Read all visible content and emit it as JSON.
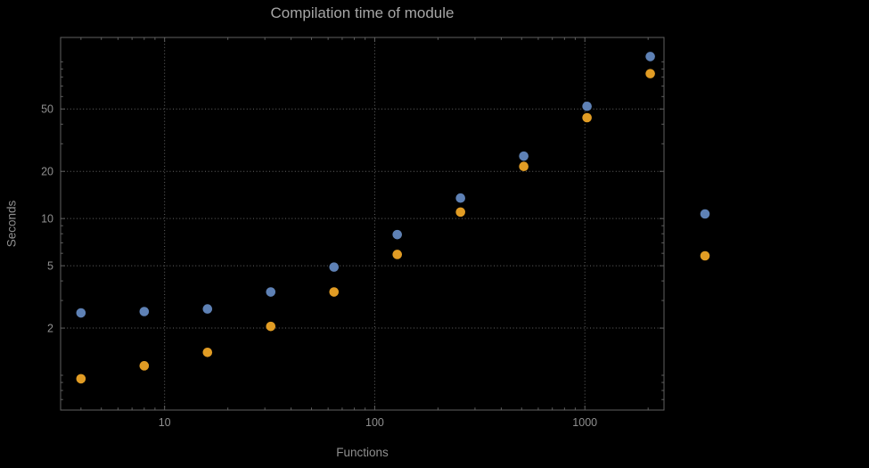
{
  "chart_data": {
    "type": "scatter",
    "title": "Compilation time of module",
    "xlabel": "Functions",
    "ylabel": "Seconds",
    "x_scale": "log",
    "y_scale": "log",
    "x": [
      4,
      8,
      16,
      32,
      64,
      128,
      256,
      512,
      1024,
      2048
    ],
    "series": [
      {
        "name": "blue-series",
        "color": "#5e81b5",
        "values": [
          2.5,
          2.55,
          2.65,
          3.4,
          4.9,
          7.9,
          13.5,
          25,
          52,
          108
        ]
      },
      {
        "name": "orange-series",
        "color": "#e19c24",
        "values": [
          0.95,
          1.15,
          1.4,
          2.05,
          3.4,
          5.9,
          11,
          21.5,
          44,
          84
        ]
      }
    ],
    "x_ticks": [
      10,
      100,
      1000
    ],
    "y_ticks": [
      2,
      5,
      10,
      20,
      50
    ],
    "xlim": [
      3.2,
      2380
    ],
    "ylim": [
      0.6,
      143
    ],
    "grid": true,
    "grid_style": "dotted",
    "legend_position": "right-center",
    "legend": [
      {
        "marker_color": "#5e81b5",
        "label": ""
      },
      {
        "marker_color": "#e19c24",
        "label": ""
      }
    ],
    "colors": {
      "background": "#000000",
      "frame": "#606060",
      "grid": "#666666",
      "title_text": "#a6a6a6",
      "axis_text": "#8f8f8f"
    }
  }
}
